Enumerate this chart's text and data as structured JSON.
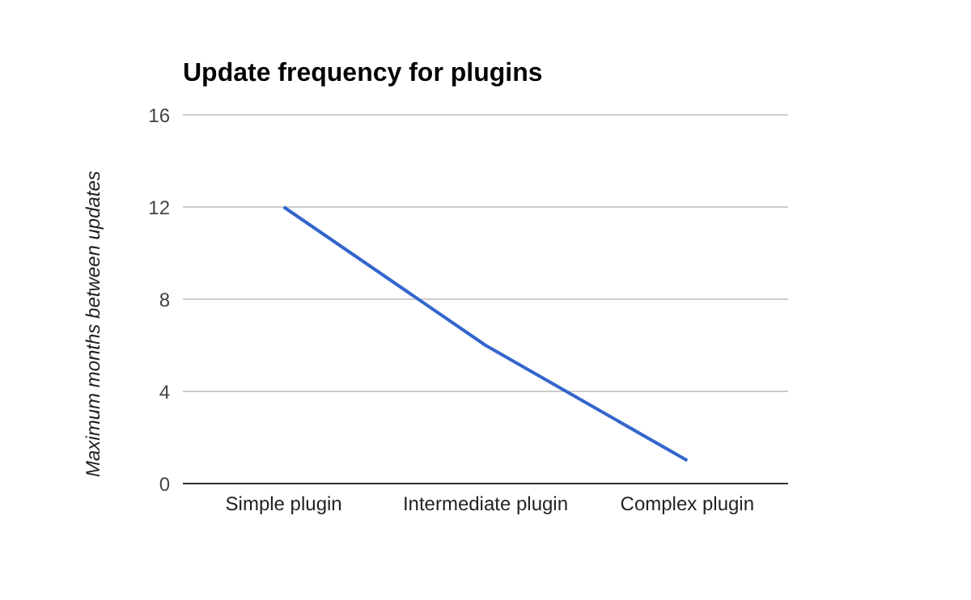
{
  "chart_data": {
    "type": "line",
    "title": "Update frequency for plugins",
    "ylabel": "Maximum months between updates",
    "categories": [
      "Simple plugin",
      "Intermediate plugin",
      "Complex plugin"
    ],
    "series": [
      {
        "color": "#3366cc",
        "values": [
          12,
          6,
          1
        ]
      }
    ],
    "ylim": [
      0,
      16
    ],
    "yticks": [
      0,
      4,
      8,
      12,
      16
    ],
    "grid": "y",
    "legend": false,
    "marker": "none",
    "line_style": "solid"
  }
}
